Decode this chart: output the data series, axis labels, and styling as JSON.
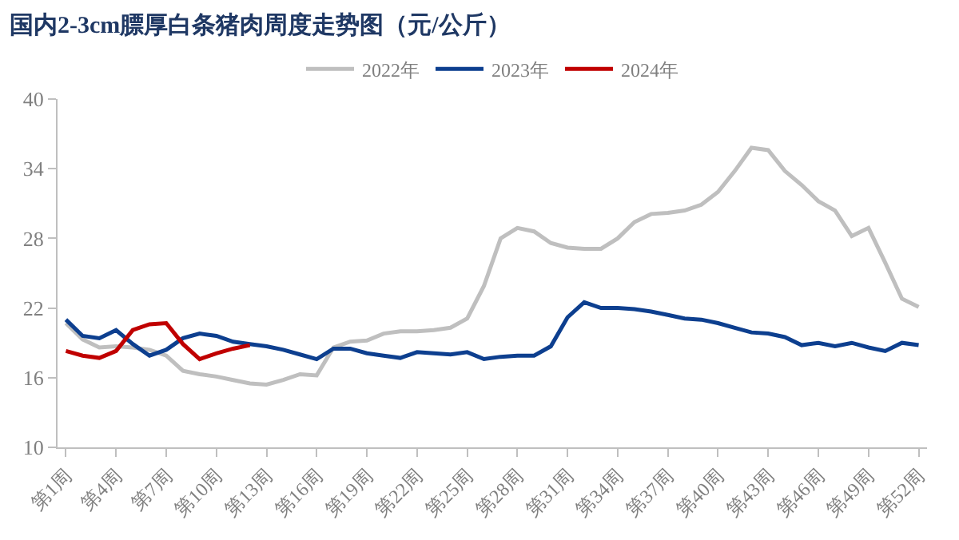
{
  "chart_data": {
    "type": "line",
    "title": "国内2-3cm膘厚白条猪肉周度走势图（元/公斤）",
    "categories": [
      "第1周",
      null,
      null,
      "第4周",
      null,
      null,
      "第7周",
      null,
      null,
      "第10周",
      null,
      null,
      "第13周",
      null,
      null,
      "第16周",
      null,
      null,
      "第19周",
      null,
      null,
      "第22周",
      null,
      null,
      "第25周",
      null,
      null,
      "第28周",
      null,
      null,
      "第31周",
      null,
      null,
      "第34周",
      null,
      null,
      "第37周",
      null,
      null,
      "第40周",
      null,
      null,
      "第43周",
      null,
      null,
      "第46周",
      null,
      null,
      "第49周",
      null,
      null,
      "第52周"
    ],
    "series": [
      {
        "name": "2022年",
        "color": "#bfbfbf",
        "values": [
          20.7,
          19.3,
          18.6,
          18.7,
          18.6,
          18.4,
          17.9,
          16.6,
          16.3,
          16.1,
          15.8,
          15.5,
          15.4,
          15.8,
          16.3,
          16.2,
          18.6,
          19.1,
          19.2,
          19.8,
          20.0,
          20.0,
          20.1,
          20.3,
          21.1,
          23.9,
          28.0,
          28.9,
          28.6,
          27.6,
          27.2,
          27.1,
          27.1,
          28.0,
          29.4,
          30.1,
          30.2,
          30.4,
          30.9,
          32.0,
          33.8,
          35.8,
          35.6,
          33.8,
          32.6,
          31.2,
          30.4,
          28.2,
          28.9,
          25.9,
          22.8,
          22.1
        ]
      },
      {
        "name": "2023年",
        "color": "#0d3f8f",
        "values": [
          21.0,
          19.6,
          19.4,
          20.1,
          18.9,
          17.9,
          18.4,
          19.4,
          19.8,
          19.6,
          19.1,
          18.9,
          18.7,
          18.4,
          18.0,
          17.6,
          18.5,
          18.5,
          18.1,
          17.9,
          17.7,
          18.2,
          18.1,
          18.0,
          18.2,
          17.6,
          17.8,
          17.9,
          17.9,
          18.7,
          21.2,
          22.5,
          22.0,
          22.0,
          21.9,
          21.7,
          21.4,
          21.1,
          21.0,
          20.7,
          20.3,
          19.9,
          19.8,
          19.5,
          18.8,
          19.0,
          18.7,
          19.0,
          18.6,
          18.3,
          19.0,
          18.8
        ]
      },
      {
        "name": "2024年",
        "color": "#c00000",
        "values": [
          18.3,
          17.9,
          17.7,
          18.3,
          20.1,
          20.6,
          20.7,
          18.9,
          17.6,
          18.1,
          18.5,
          18.8,
          null,
          null,
          null,
          null,
          null,
          null,
          null,
          null,
          null,
          null,
          null,
          null,
          null,
          null,
          null,
          null,
          null,
          null,
          null,
          null,
          null,
          null,
          null,
          null,
          null,
          null,
          null,
          null,
          null,
          null,
          null,
          null,
          null,
          null,
          null,
          null,
          null,
          null,
          null,
          null
        ]
      }
    ],
    "ylim": [
      10,
      40
    ],
    "yticks": [
      10,
      16,
      22,
      28,
      34,
      40
    ],
    "legend": "top",
    "marker": "none",
    "line_style": "solid"
  }
}
